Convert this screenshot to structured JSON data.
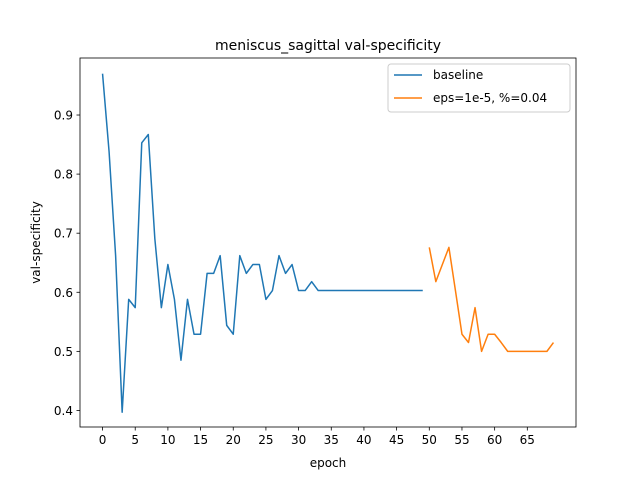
{
  "chart_data": {
    "type": "line",
    "title": "meniscus_sagittal val-specificity",
    "xlabel": "epoch",
    "ylabel": "val-specificity",
    "xlim": [
      -3.45,
      72.45
    ],
    "ylim": [
      0.372,
      0.9965
    ],
    "xticks": [
      0,
      5,
      10,
      15,
      20,
      25,
      30,
      35,
      40,
      45,
      50,
      55,
      60,
      65
    ],
    "yticks": [
      0.4,
      0.5,
      0.6,
      0.7,
      0.8,
      0.9
    ],
    "ytick_labels": [
      "0.4",
      "0.5",
      "0.6",
      "0.7",
      "0.8",
      "0.9"
    ],
    "grid": false,
    "legend_position": "top-right",
    "series": [
      {
        "name": "baseline",
        "color": "#1f77b4",
        "x": [
          0,
          1,
          2,
          3,
          4,
          5,
          6,
          7,
          8,
          9,
          10,
          11,
          12,
          13,
          14,
          15,
          16,
          17,
          18,
          19,
          20,
          21,
          22,
          23,
          24,
          25,
          26,
          27,
          28,
          29,
          30,
          31,
          32,
          33,
          34,
          35,
          36,
          37,
          38,
          39,
          40,
          41,
          42,
          43,
          44,
          45,
          46,
          47,
          48,
          49
        ],
        "y": [
          0.97,
          0.838,
          0.662,
          0.397,
          0.588,
          0.574,
          0.853,
          0.867,
          0.691,
          0.574,
          0.647,
          0.588,
          0.485,
          0.588,
          0.529,
          0.529,
          0.632,
          0.632,
          0.662,
          0.544,
          0.529,
          0.662,
          0.632,
          0.647,
          0.647,
          0.588,
          0.603,
          0.662,
          0.632,
          0.647,
          0.603,
          0.603,
          0.618,
          0.603,
          0.603,
          0.603,
          0.603,
          0.603,
          0.603,
          0.603,
          0.603,
          0.603,
          0.603,
          0.603,
          0.603,
          0.603,
          0.603,
          0.603,
          0.603,
          0.603
        ]
      },
      {
        "name": "eps=1e-5, %=0.04",
        "color": "#ff7f0e",
        "x": [
          50,
          51,
          52,
          53,
          54,
          55,
          56,
          57,
          58,
          59,
          60,
          61,
          62,
          63,
          64,
          65,
          66,
          67,
          68,
          69
        ],
        "y": [
          0.676,
          0.618,
          0.647,
          0.676,
          0.603,
          0.529,
          0.515,
          0.574,
          0.5,
          0.529,
          0.529,
          0.515,
          0.5,
          0.5,
          0.5,
          0.5,
          0.5,
          0.5,
          0.5,
          0.515
        ]
      }
    ]
  }
}
